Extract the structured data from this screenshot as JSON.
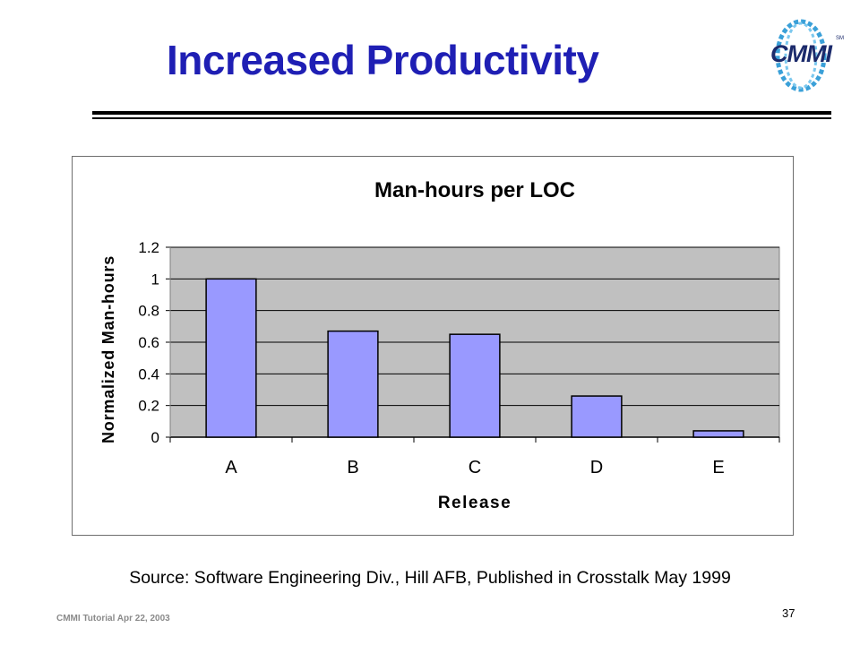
{
  "slide": {
    "title": "Increased Productivity",
    "logo_text": "CMMI",
    "logo_tm": "SM",
    "source": "Source: Software Engineering Div., Hill AFB, Published in Crosstalk May 1999",
    "footer": "CMMI Tutorial Apr 22, 2003",
    "page_number": "37"
  },
  "colors": {
    "title": "#1f1fb4",
    "bar_fill": "#9999ff",
    "plot_background": "#c0c0c0",
    "logo": "#1b2a6b"
  },
  "chart_data": {
    "type": "bar",
    "title": "Man-hours per LOC",
    "xlabel": "Release",
    "ylabel": "Normalized Man-hours",
    "categories": [
      "A",
      "B",
      "C",
      "D",
      "E"
    ],
    "values": [
      1.0,
      0.67,
      0.65,
      0.26,
      0.04
    ],
    "ylim": [
      0,
      1.2
    ],
    "yticks": [
      0,
      0.2,
      0.4,
      0.6,
      0.8,
      1,
      1.2
    ],
    "ytick_labels": [
      "0",
      "0.2",
      "0.4",
      "0.6",
      "0.8",
      "1",
      "1.2"
    ],
    "grid": true,
    "legend": "none"
  }
}
